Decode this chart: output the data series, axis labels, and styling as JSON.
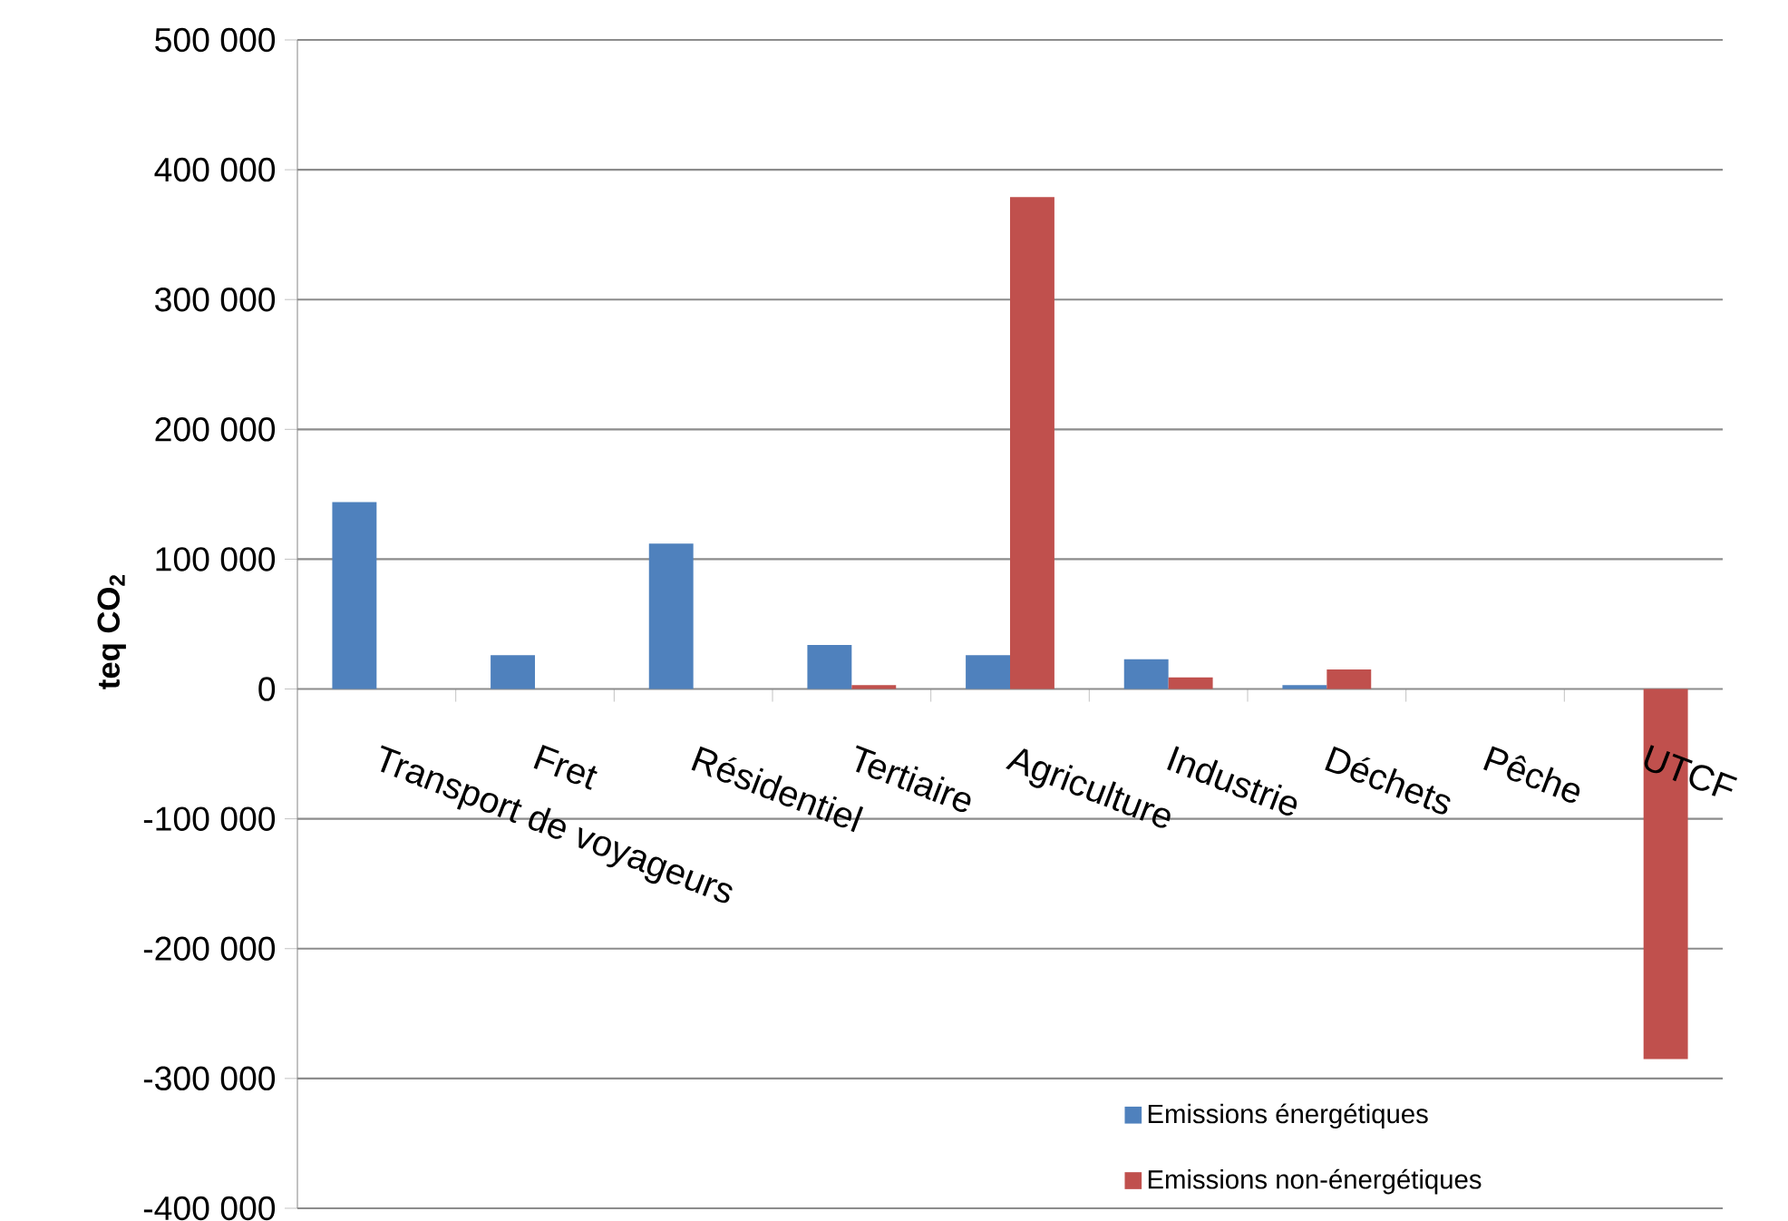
{
  "chart_data": {
    "type": "bar",
    "categories": [
      "Transport de voyageurs",
      "Fret",
      "Résidentiel",
      "Tertiaire",
      "Agriculture",
      "Industrie",
      "Déchets",
      "Pêche",
      "UTCF"
    ],
    "series": [
      {
        "name": "Emissions énergétiques",
        "color": "#4f81bd",
        "values": [
          144000,
          26000,
          112000,
          34000,
          26000,
          23000,
          3000,
          null,
          null
        ]
      },
      {
        "name": "Emissions non-énergétiques",
        "color": "#c0504d",
        "values": [
          null,
          null,
          null,
          3000,
          379000,
          9000,
          15000,
          null,
          -285000
        ]
      }
    ],
    "ylabel": "teq CO$_{2}$",
    "ylim": [
      -400000,
      500000
    ],
    "yticks": [
      {
        "value": 500000,
        "label": "500 000"
      },
      {
        "value": 400000,
        "label": "400 000"
      },
      {
        "value": 300000,
        "label": "300 000"
      },
      {
        "value": 200000,
        "label": "200 000"
      },
      {
        "value": 100000,
        "label": "100 000"
      },
      0,
      {
        "value": -100000,
        "label": "-100 000"
      },
      {
        "value": -200000,
        "label": "-200 000"
      },
      {
        "value": -300000,
        "label": "-300 000"
      },
      {
        "value": -400000,
        "label": "-400 000"
      }
    ],
    "grid": "y",
    "legend": "bottom right"
  }
}
